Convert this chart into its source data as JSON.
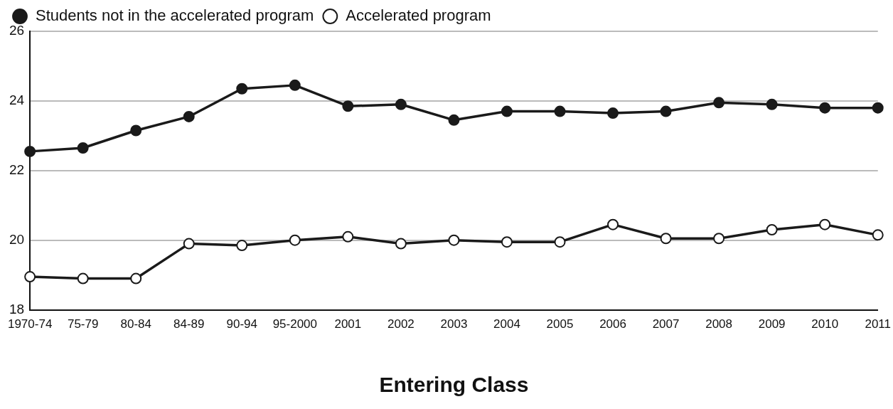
{
  "chart_data": {
    "type": "line",
    "xlabel": "Entering Class",
    "categories": [
      "1970-74",
      "75-79",
      "80-84",
      "84-89",
      "90-94",
      "95-2000",
      "2001",
      "2002",
      "2003",
      "2004",
      "2005",
      "2006",
      "2007",
      "2008",
      "2009",
      "2010",
      "2011"
    ],
    "series": [
      {
        "name": "Students not in the accelerated program",
        "color": "#1a1a1a",
        "values": [
          22.55,
          22.65,
          23.15,
          23.55,
          24.35,
          24.45,
          23.85,
          23.9,
          23.45,
          23.7,
          23.7,
          23.65,
          23.7,
          23.95,
          23.9,
          23.8,
          23.8
        ]
      },
      {
        "name": "Accelerated program",
        "color": "#1a1a1a",
        "values": [
          18.95,
          18.9,
          18.9,
          19.9,
          19.85,
          20.0,
          20.1,
          19.9,
          20.0,
          19.95,
          19.95,
          20.45,
          20.05,
          20.05,
          20.3,
          20.45,
          20.15
        ]
      }
    ],
    "ylim": [
      18,
      26
    ],
    "yticks": [
      18,
      20,
      22,
      24,
      26
    ],
    "grid": "y",
    "legend": "top",
    "marker": "circle",
    "line_style": "solid"
  }
}
